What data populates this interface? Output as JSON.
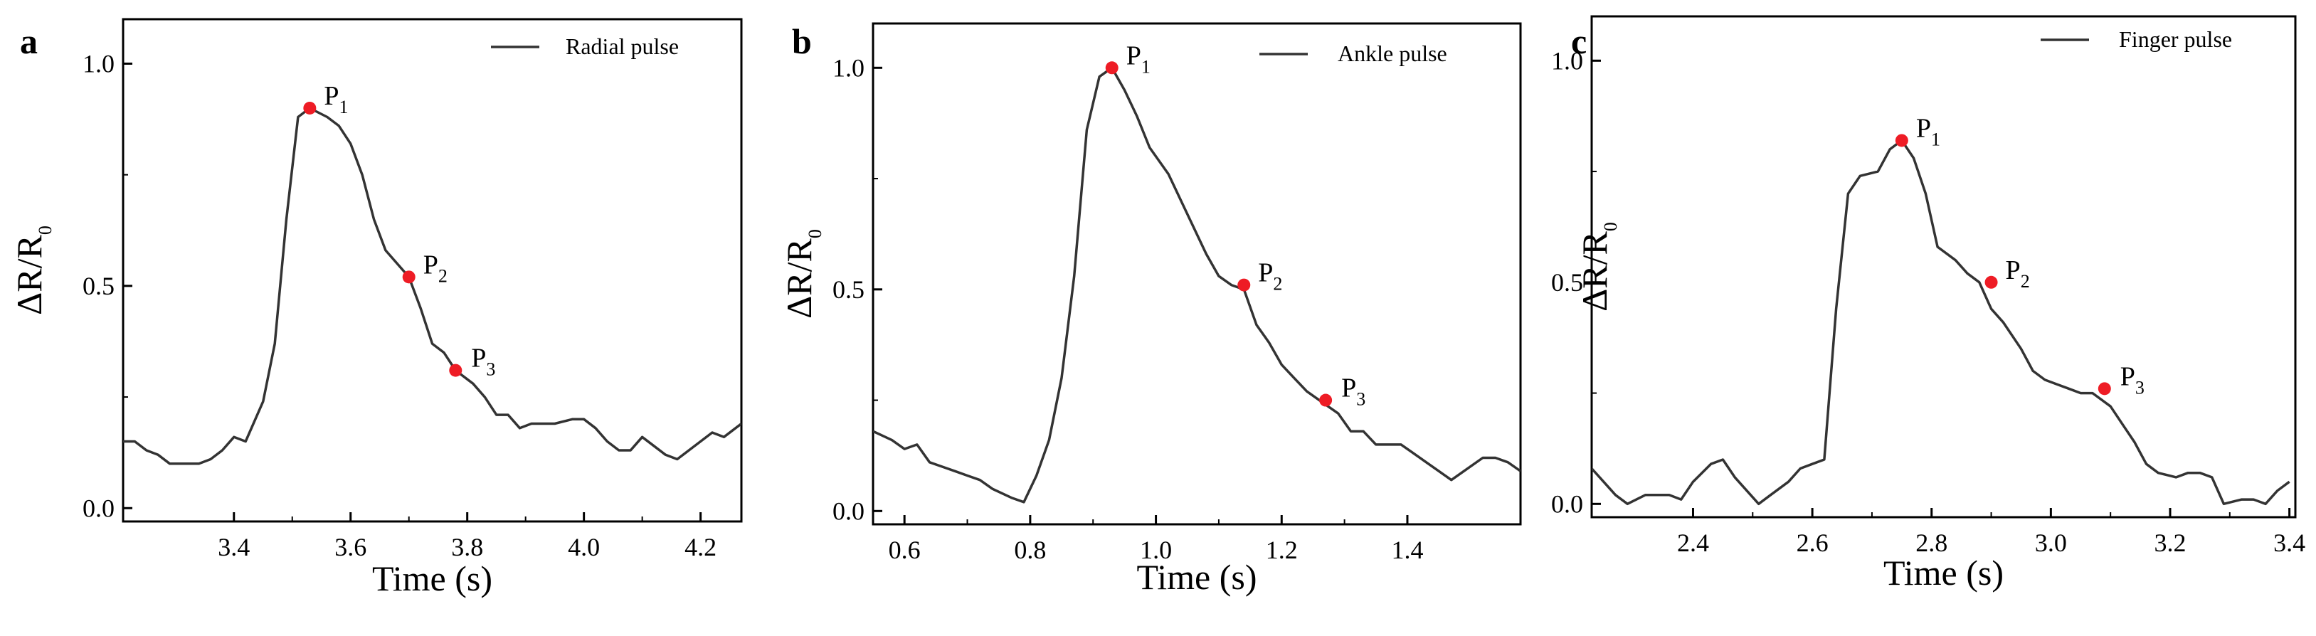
{
  "chart_data": [
    {
      "type": "line",
      "panel": "a",
      "xlabel": "Time (s)",
      "ylabel_main": "ΔR/R",
      "ylabel_sub": "0",
      "xlim": [
        3.21,
        4.27
      ],
      "ylim": [
        -0.03,
        1.1
      ],
      "xticks": [
        3.4,
        3.6,
        3.8,
        4.0,
        4.2
      ],
      "xtick_labels": [
        "3.4",
        "3.6",
        "3.8",
        "4.0",
        "4.2"
      ],
      "yticks": [
        0.0,
        0.5,
        1.0
      ],
      "ytick_labels": [
        "0.0",
        "0.5",
        "1.0"
      ],
      "legend": "Radial pulse",
      "x": [
        3.21,
        3.23,
        3.25,
        3.27,
        3.29,
        3.32,
        3.34,
        3.36,
        3.38,
        3.4,
        3.42,
        3.45,
        3.47,
        3.49,
        3.51,
        3.53,
        3.56,
        3.58,
        3.6,
        3.62,
        3.64,
        3.66,
        3.68,
        3.7,
        3.72,
        3.74,
        3.76,
        3.78,
        3.81,
        3.83,
        3.85,
        3.87,
        3.89,
        3.91,
        3.93,
        3.95,
        3.98,
        4.0,
        4.02,
        4.04,
        4.06,
        4.08,
        4.1,
        4.12,
        4.14,
        4.16,
        4.18,
        4.2,
        4.22,
        4.24,
        4.27
      ],
      "y": [
        0.15,
        0.15,
        0.13,
        0.12,
        0.1,
        0.1,
        0.1,
        0.11,
        0.13,
        0.16,
        0.15,
        0.24,
        0.37,
        0.65,
        0.88,
        0.9,
        0.88,
        0.86,
        0.82,
        0.75,
        0.65,
        0.58,
        0.55,
        0.52,
        0.45,
        0.37,
        0.35,
        0.31,
        0.28,
        0.25,
        0.21,
        0.21,
        0.18,
        0.19,
        0.19,
        0.19,
        0.2,
        0.2,
        0.18,
        0.15,
        0.13,
        0.13,
        0.16,
        0.14,
        0.12,
        0.11,
        0.13,
        0.15,
        0.17,
        0.16,
        0.19
      ],
      "points": [
        {
          "label": "P",
          "sub": "1",
          "x": 3.53,
          "y": 0.9
        },
        {
          "label": "P",
          "sub": "2",
          "x": 3.7,
          "y": 0.52
        },
        {
          "label": "P",
          "sub": "3",
          "x": 3.78,
          "y": 0.31
        }
      ],
      "line_color": "#333333",
      "point_color": "#ee1c25"
    },
    {
      "type": "line",
      "panel": "b",
      "xlabel": "Time (s)",
      "ylabel_main": "ΔR/R",
      "ylabel_sub": "0",
      "xlim": [
        0.55,
        1.58
      ],
      "ylim": [
        -0.03,
        1.1
      ],
      "xticks": [
        0.6,
        0.8,
        1.0,
        1.2,
        1.4
      ],
      "xtick_labels": [
        "0.6",
        "0.8",
        "1.0",
        "1.2",
        "1.4"
      ],
      "yticks": [
        0.0,
        0.5,
        1.0
      ],
      "ytick_labels": [
        "0.0",
        "0.5",
        "1.0"
      ],
      "legend": "Ankle pulse",
      "x": [
        0.55,
        0.58,
        0.6,
        0.62,
        0.64,
        0.66,
        0.68,
        0.7,
        0.72,
        0.74,
        0.77,
        0.79,
        0.81,
        0.83,
        0.85,
        0.87,
        0.89,
        0.91,
        0.93,
        0.95,
        0.97,
        0.99,
        1.02,
        1.04,
        1.06,
        1.08,
        1.1,
        1.12,
        1.14,
        1.16,
        1.18,
        1.2,
        1.22,
        1.24,
        1.27,
        1.29,
        1.31,
        1.33,
        1.35,
        1.37,
        1.39,
        1.41,
        1.43,
        1.45,
        1.47,
        1.49,
        1.52,
        1.54,
        1.56,
        1.58
      ],
      "y": [
        0.18,
        0.16,
        0.14,
        0.15,
        0.11,
        0.1,
        0.09,
        0.08,
        0.07,
        0.05,
        0.03,
        0.02,
        0.08,
        0.16,
        0.3,
        0.53,
        0.86,
        0.98,
        1.0,
        0.95,
        0.89,
        0.82,
        0.76,
        0.7,
        0.64,
        0.58,
        0.53,
        0.51,
        0.5,
        0.42,
        0.38,
        0.33,
        0.3,
        0.27,
        0.24,
        0.22,
        0.18,
        0.18,
        0.15,
        0.15,
        0.15,
        0.13,
        0.11,
        0.09,
        0.07,
        0.09,
        0.12,
        0.12,
        0.11,
        0.09
      ],
      "points": [
        {
          "label": "P",
          "sub": "1",
          "x": 0.93,
          "y": 1.0
        },
        {
          "label": "P",
          "sub": "2",
          "x": 1.14,
          "y": 0.51
        },
        {
          "label": "P",
          "sub": "3",
          "x": 1.27,
          "y": 0.25
        }
      ],
      "line_color": "#333333",
      "point_color": "#ee1c25"
    },
    {
      "type": "line",
      "panel": "c",
      "xlabel": "Time (s)",
      "ylabel_main": "ΔR/R",
      "ylabel_sub": "0",
      "xlim": [
        2.23,
        3.41
      ],
      "ylim": [
        -0.03,
        1.1
      ],
      "xticks": [
        2.4,
        2.6,
        2.8,
        3.0,
        3.2,
        3.4
      ],
      "xtick_labels": [
        "2.4",
        "2.6",
        "2.8",
        "3.0",
        "3.2",
        "3.4"
      ],
      "yticks": [
        0.0,
        0.5,
        1.0
      ],
      "ytick_labels": [
        "0.0",
        "0.5",
        "1.0"
      ],
      "legend": "Finger pulse",
      "x": [
        2.23,
        2.25,
        2.27,
        2.29,
        2.32,
        2.34,
        2.36,
        2.38,
        2.4,
        2.43,
        2.45,
        2.47,
        2.49,
        2.51,
        2.53,
        2.56,
        2.58,
        2.6,
        2.62,
        2.64,
        2.66,
        2.68,
        2.71,
        2.73,
        2.75,
        2.77,
        2.79,
        2.81,
        2.84,
        2.86,
        2.88,
        2.9,
        2.92,
        2.95,
        2.97,
        2.99,
        3.01,
        3.03,
        3.05,
        3.07,
        3.1,
        3.12,
        3.14,
        3.16,
        3.18,
        3.21,
        3.23,
        3.25,
        3.27,
        3.29,
        3.32,
        3.34,
        3.36,
        3.38,
        3.4
      ],
      "y": [
        0.08,
        0.05,
        0.02,
        0.0,
        0.02,
        0.02,
        0.02,
        0.01,
        0.05,
        0.09,
        0.1,
        0.06,
        0.03,
        0.0,
        0.02,
        0.05,
        0.08,
        0.09,
        0.1,
        0.44,
        0.7,
        0.74,
        0.75,
        0.8,
        0.82,
        0.78,
        0.7,
        0.58,
        0.55,
        0.52,
        0.5,
        0.44,
        0.41,
        0.35,
        0.3,
        0.28,
        0.27,
        0.26,
        0.25,
        0.25,
        0.22,
        0.18,
        0.14,
        0.09,
        0.07,
        0.06,
        0.07,
        0.07,
        0.06,
        0.0,
        0.01,
        0.01,
        0.0,
        0.03,
        0.05
      ],
      "points": [
        {
          "label": "P",
          "sub": "1",
          "x": 2.75,
          "y": 0.82
        },
        {
          "label": "P",
          "sub": "2",
          "x": 2.9,
          "y": 0.5
        },
        {
          "label": "P",
          "sub": "3",
          "x": 3.09,
          "y": 0.26
        }
      ],
      "line_color": "#333333",
      "point_color": "#ee1c25"
    }
  ]
}
